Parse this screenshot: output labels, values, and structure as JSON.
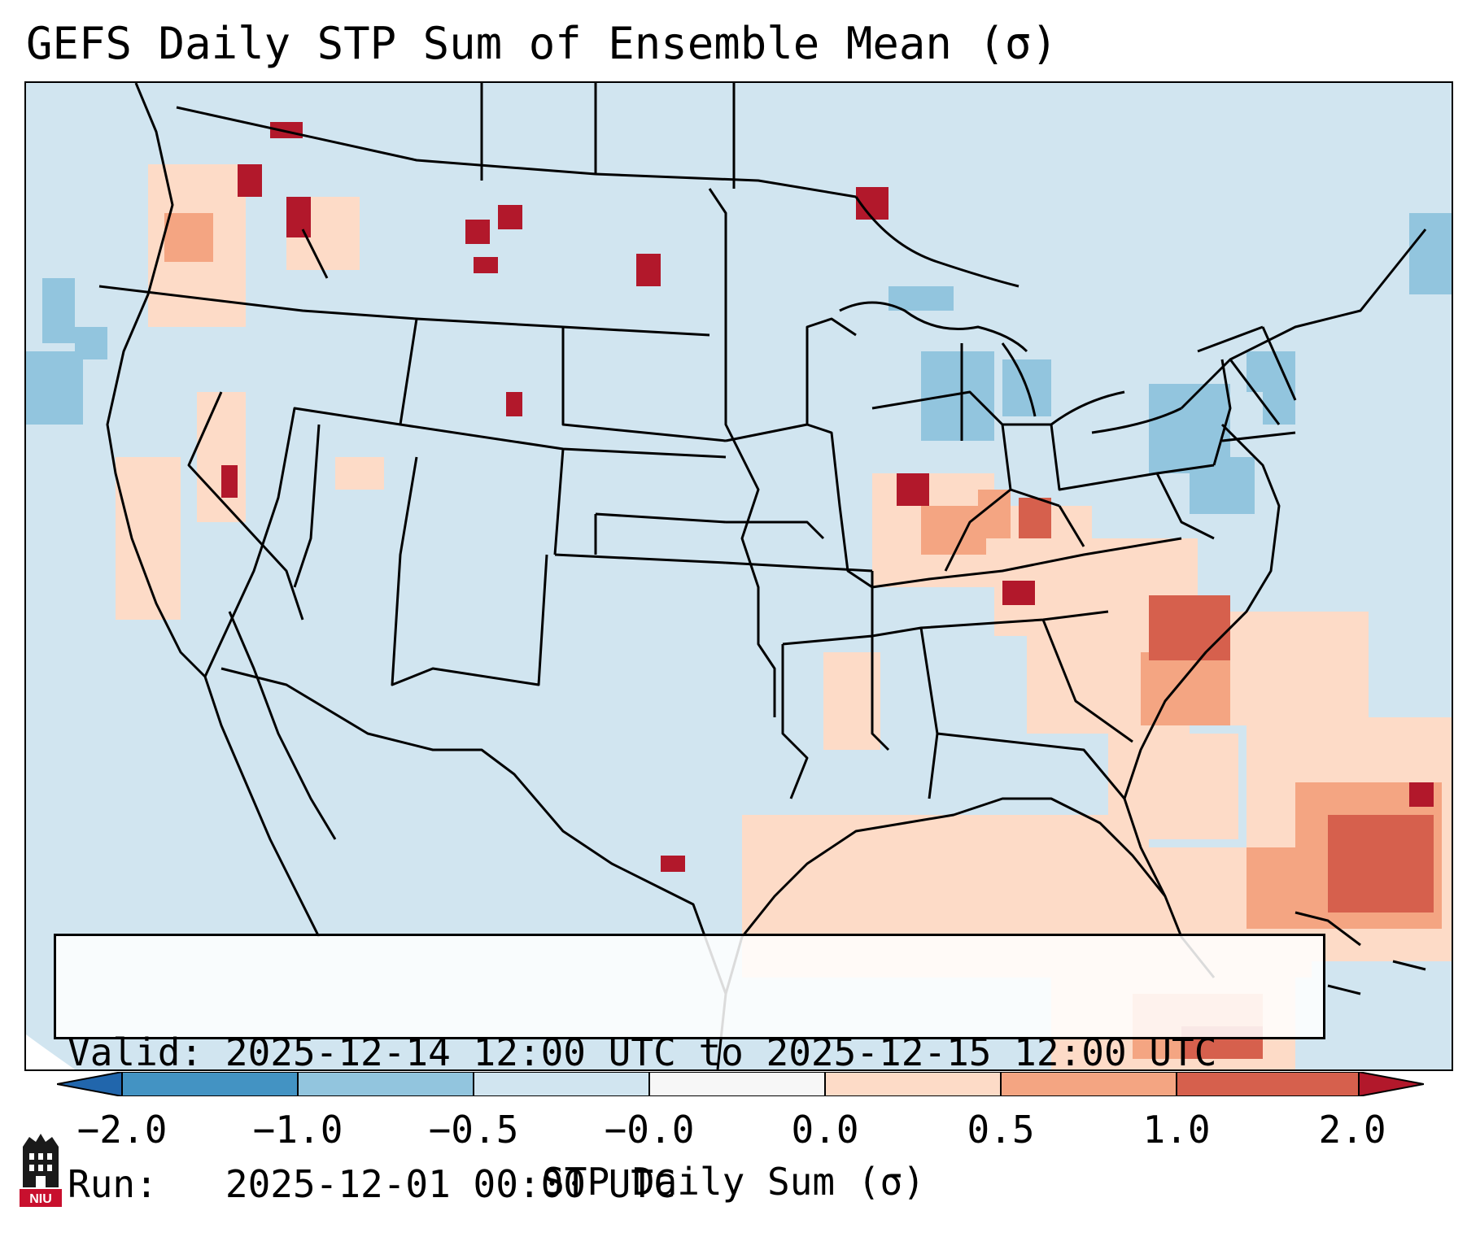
{
  "title": "GEFS Daily STP Sum of Ensemble Mean (σ)",
  "info": {
    "valid_label": "Valid:",
    "valid_value": "2025-12-14 12:00 UTC to 2025-12-15 12:00 UTC",
    "run_label": "Run:",
    "run_value": "2025-12-01 00:00 UTC"
  },
  "colorbar": {
    "label": "STP Daily Sum (σ)",
    "ticks": [
      "−2.0",
      "−1.0",
      "−0.5",
      "−0.0",
      "0.0",
      "0.5",
      "1.0",
      "2.0"
    ],
    "colors": {
      "extend_low": "#2166ac",
      "bin_m2_m1": "#4393c3",
      "bin_m1_m05": "#92c5de",
      "bin_m05_0": "#d1e5f0",
      "bin_0": "#f7f7f7",
      "bin_0_05": "#fddbc7",
      "bin_05_1": "#f4a582",
      "bin_1_2": "#d6604d",
      "extend_high": "#b2182b"
    }
  },
  "map": {
    "region": "CONUS",
    "background_color": "#d1e5f0",
    "line_color": "#000000"
  },
  "logo": {
    "text": "NIU",
    "icon": "university-logo-icon"
  }
}
